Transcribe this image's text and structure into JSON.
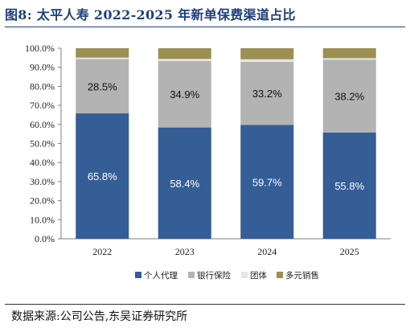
{
  "header": {
    "title": "图8:  太平人寿 2022-2025 年新单保费渠道占比"
  },
  "footer": {
    "source": "数据来源:公司公告,东吴证券研究所"
  },
  "chart_data": {
    "type": "bar",
    "stacked": true,
    "categories": [
      "2022",
      "2023",
      "2024",
      "2025"
    ],
    "series": [
      {
        "name": "个人代理",
        "values": [
          65.8,
          58.4,
          59.7,
          55.8
        ],
        "color": "#355d96",
        "labels": [
          "65.8%",
          "58.4%",
          "59.7%",
          "55.8%"
        ]
      },
      {
        "name": "银行保险",
        "values": [
          28.5,
          34.9,
          33.2,
          38.2
        ],
        "color": "#b3b3b3",
        "labels": [
          "28.5%",
          "34.9%",
          "33.2%",
          "38.2%"
        ]
      },
      {
        "name": "团体",
        "values": [
          0.8,
          1.1,
          1.3,
          0.8
        ],
        "color": "#e6e6e6"
      },
      {
        "name": "多元销售",
        "values": [
          4.9,
          5.6,
          5.8,
          5.2
        ],
        "color": "#9b8f52"
      }
    ],
    "ylim": [
      0,
      100
    ],
    "yticks": [
      "0.0%",
      "10.0%",
      "20.0%",
      "30.0%",
      "40.0%",
      "50.0%",
      "60.0%",
      "70.0%",
      "80.0%",
      "90.0%",
      "100.0%"
    ],
    "legend_position": "bottom",
    "grid": false
  }
}
